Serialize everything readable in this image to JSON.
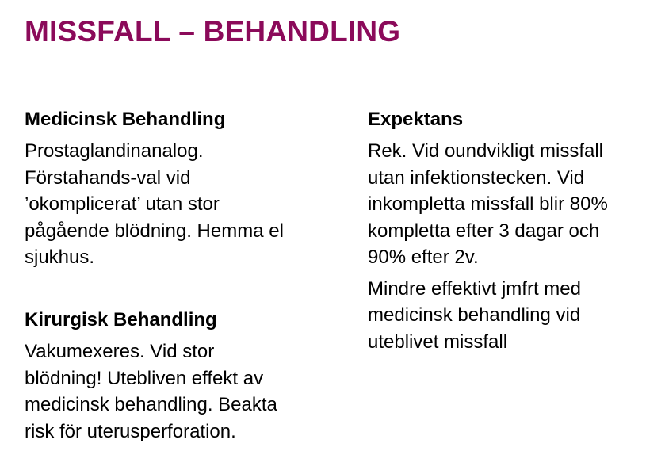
{
  "title": "MISSFALL – BEHANDLING",
  "colors": {
    "title": "#8b0a5a",
    "text": "#000000",
    "background": "#ffffff"
  },
  "medical": {
    "heading": "Medicinsk Behandling",
    "lines": [
      "Prostaglandinanalog.",
      "Förstahands-val vid",
      "’okomplicerat’ utan stor",
      "pågående blödning. Hemma el",
      "sjukhus."
    ]
  },
  "surgical": {
    "heading": "Kirurgisk Behandling",
    "lines": [
      "Vakumexeres. Vid stor",
      "blödning! Utebliven effekt av",
      "medicinsk behandling. Beakta",
      "risk för uterusperforation."
    ]
  },
  "expectant": {
    "heading": "Expektans",
    "paragraph1_lines": [
      "Rek. Vid oundvikligt missfall",
      "utan infektionstecken. Vid",
      "inkompletta missfall blir 80%",
      "kompletta efter 3 dagar och",
      "90% efter 2v."
    ],
    "paragraph2_lines": [
      "Mindre effektivt jmfrt med",
      "medicinsk behandling vid",
      "uteblivet missfall"
    ]
  }
}
